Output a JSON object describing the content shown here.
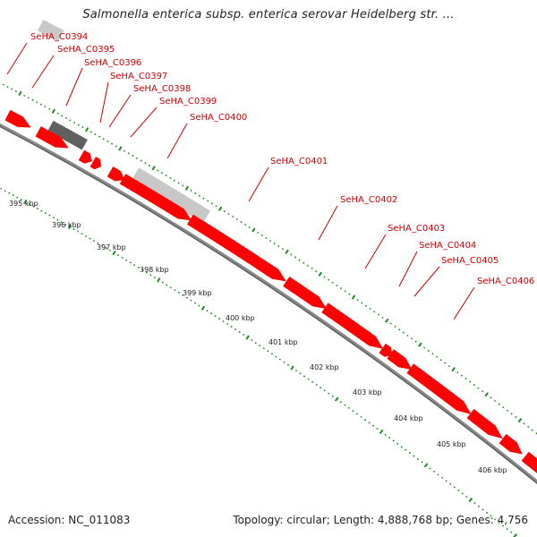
{
  "title": "Salmonella enterica subsp. enterica serovar Heidelberg str. ...",
  "footer": {
    "accession": "Accession: NC_011083",
    "summary": "Topology: circular; Length: 4,888,768 bp; Genes: 4,756"
  },
  "colors": {
    "gene_forward": "#ff0000",
    "gene_other_dark": "#606060",
    "gene_other_light": "#c8c8c8",
    "backbone": "#888888",
    "label": "#cc0000",
    "ticks": "#228b22"
  },
  "gene_labels": [
    "SeHA_C0394",
    "SeHA_C0395",
    "SeHA_C0396",
    "SeHA_C0397",
    "SeHA_C0398",
    "SeHA_C0399",
    "SeHA_C0400",
    "SeHA_C0401",
    "SeHA_C0402",
    "SeHA_C0403",
    "SeHA_C0404",
    "SeHA_C0405",
    "SeHA_C0406"
  ],
  "kbp_labels": [
    "395 kbp",
    "396 kbp",
    "397 kbp",
    "398 kbp",
    "399 kbp",
    "400 kbp",
    "401 kbp",
    "402 kbp",
    "403 kbp",
    "404 kbp",
    "405 kbp",
    "406 kbp"
  ]
}
